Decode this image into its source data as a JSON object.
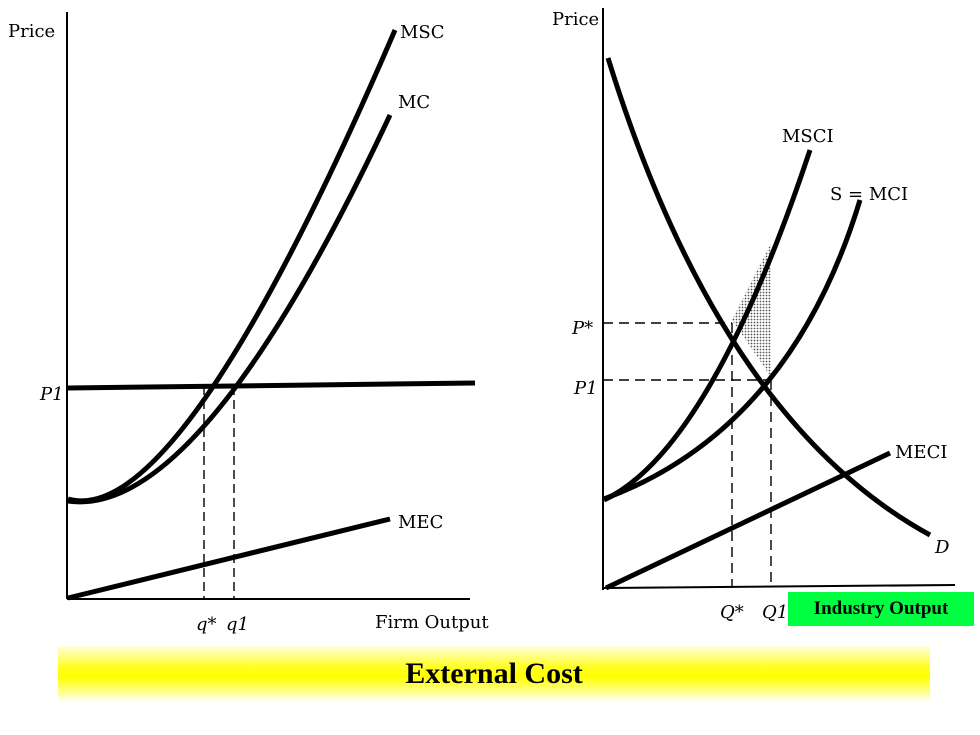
{
  "chart_data": [
    {
      "type": "line",
      "title": "",
      "ylabel": "Price",
      "xlabel": "Firm Output",
      "x_ticks": [
        "q*",
        "q1"
      ],
      "y_ticks": [
        "P1"
      ],
      "series": [
        {
          "name": "MSC"
        },
        {
          "name": "MC"
        },
        {
          "name": "MEC"
        },
        {
          "name": "P1"
        }
      ]
    },
    {
      "type": "line",
      "title": "",
      "ylabel": "Price",
      "xlabel": "Industry Output",
      "x_ticks": [
        "Q*",
        "Q1"
      ],
      "y_ticks": [
        "P*",
        "P1"
      ],
      "series": [
        {
          "name": "MSCI"
        },
        {
          "name": "S = MCI"
        },
        {
          "name": "MECI"
        },
        {
          "name": "D"
        }
      ]
    }
  ],
  "caption": "External Cost",
  "colors": {
    "title_band": "#ffff00",
    "badge": "#00ff40",
    "shading": "#9a9a9a"
  }
}
